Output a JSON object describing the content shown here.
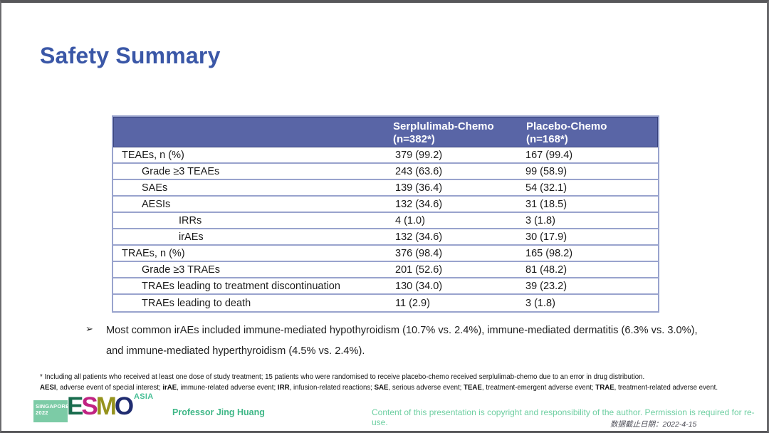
{
  "slide": {
    "title": "Safety Summary"
  },
  "table": {
    "header": {
      "col1": "",
      "col2": {
        "line1": "Serplulimab-Chemo",
        "line2": "(n=382*)"
      },
      "col3": {
        "line1": "Placebo-Chemo",
        "line2": "(n=168*)"
      }
    },
    "rows": [
      {
        "label": "TEAEs, n (%)",
        "indent": 0,
        "serplulimab_chemo": "379 (99.2)",
        "placebo_chemo": "167 (99.4)"
      },
      {
        "label": "Grade ≥3 TEAEs",
        "indent": 1,
        "serplulimab_chemo": "243 (63.6)",
        "placebo_chemo": "99 (58.9)"
      },
      {
        "label": "SAEs",
        "indent": 1,
        "serplulimab_chemo": "139 (36.4)",
        "placebo_chemo": "54 (32.1)"
      },
      {
        "label": "AESIs",
        "indent": 1,
        "serplulimab_chemo": "132 (34.6)",
        "placebo_chemo": "31 (18.5)"
      },
      {
        "label": "IRRs",
        "indent": 2,
        "serplulimab_chemo": "4 (1.0)",
        "placebo_chemo": "3 (1.8)"
      },
      {
        "label": "irAEs",
        "indent": 2,
        "serplulimab_chemo": "132 (34.6)",
        "placebo_chemo": "30 (17.9)"
      },
      {
        "label": "TRAEs, n (%)",
        "indent": 0,
        "serplulimab_chemo": "376 (98.4)",
        "placebo_chemo": "165 (98.2)"
      },
      {
        "label": "Grade ≥3 TRAEs",
        "indent": 1,
        "serplulimab_chemo": "201 (52.6)",
        "placebo_chemo": "81 (48.2)"
      },
      {
        "label": "TRAEs leading to treatment discontinuation",
        "indent": 1,
        "serplulimab_chemo": "130 (34.0)",
        "placebo_chemo": "39 (23.2)"
      },
      {
        "label": "TRAEs leading to death",
        "indent": 1,
        "serplulimab_chemo": "11 (2.9)",
        "placebo_chemo": "3 (1.8)"
      }
    ]
  },
  "bullet": {
    "marker": "➢",
    "text": "Most common irAEs included immune-mediated hypothyroidism (10.7% vs. 2.4%), immune-mediated dermatitis (6.3% vs. 3.0%), and immune-mediated hyperthyroidism (4.5% vs. 2.4%)."
  },
  "footnotes": {
    "line1": "* Including all patients who received at least one dose of study treatment; 15 patients who were randomised to receive placebo-chemo received serplulimab-chemo due to an error in drug distribution.",
    "line2_segments": [
      {
        "t": "AESI",
        "b": true
      },
      {
        "t": ", adverse event of special interest; ",
        "b": false
      },
      {
        "t": "irAE",
        "b": true
      },
      {
        "t": ", immune-related adverse event; ",
        "b": false
      },
      {
        "t": "IRR",
        "b": true
      },
      {
        "t": ", infusion-related reactions; ",
        "b": false
      },
      {
        "t": "SAE",
        "b": true
      },
      {
        "t": ", serious adverse event; ",
        "b": false
      },
      {
        "t": "TEAE",
        "b": true
      },
      {
        "t": ", treatment-emergent adverse event; ",
        "b": false
      },
      {
        "t": "TRAE",
        "b": true
      },
      {
        "t": ", treatment-related adverse event.",
        "b": false
      }
    ]
  },
  "footer": {
    "logo": {
      "badge_line1": "SINGAPORE",
      "badge_line2": "2022",
      "letters": [
        {
          "ch": "E",
          "color": "#186C4D"
        },
        {
          "ch": "S",
          "color": "#C02382"
        },
        {
          "ch": "M",
          "color": "#96931D"
        },
        {
          "ch": "O",
          "color": "#202C70"
        }
      ],
      "asia": "ASIA"
    },
    "presenter": "Professor Jing Huang",
    "copyright": "Content of this presentation is copyright and responsibility of the author. Permission is required for re-use.",
    "data_cutoff": "数据截止日期：2022-4-15"
  },
  "colors": {
    "title_blue": "#3A57A7",
    "table_header_bg": "#5965A6",
    "table_border": "#99A3CD",
    "green_accent": "#5FC79B",
    "badge_bg": "#7CCBA6",
    "slide_border": "#57575a"
  }
}
